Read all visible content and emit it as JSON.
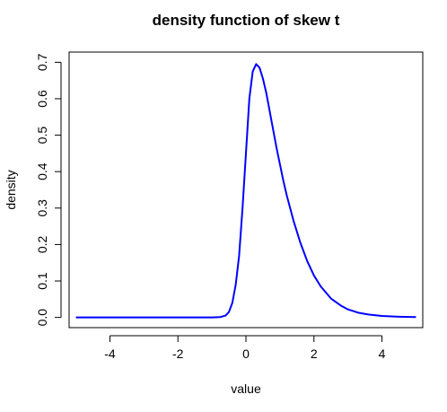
{
  "chart_data": {
    "type": "line",
    "title": "density function of skew t",
    "xlabel": "value",
    "ylabel": "density",
    "xlim": [
      -5.2,
      5.2
    ],
    "ylim": [
      -0.028,
      0.728
    ],
    "xticks": [
      -4,
      -2,
      0,
      2,
      4
    ],
    "xtick_labels": [
      "-4",
      "-2",
      "0",
      "2",
      "4"
    ],
    "yticks": [
      0.0,
      0.1,
      0.2,
      0.3,
      0.4,
      0.5,
      0.6,
      0.7
    ],
    "ytick_labels": [
      "0.0",
      "0.1",
      "0.2",
      "0.3",
      "0.4",
      "0.5",
      "0.6",
      "0.7"
    ],
    "grid": false,
    "series": [
      {
        "color": "#0000ff",
        "x": [
          -5.0,
          -4.0,
          -3.0,
          -2.0,
          -1.0,
          -0.75,
          -0.6,
          -0.5,
          -0.4,
          -0.3,
          -0.2,
          -0.1,
          0.0,
          0.1,
          0.2,
          0.3,
          0.4,
          0.5,
          0.6,
          0.7,
          0.8,
          0.9,
          1.0,
          1.1,
          1.2,
          1.4,
          1.6,
          1.8,
          2.0,
          2.2,
          2.5,
          2.8,
          3.0,
          3.3,
          3.6,
          4.0,
          4.5,
          5.0
        ],
        "y": [
          0.0,
          0.0,
          0.0,
          0.0,
          0.0,
          0.001,
          0.005,
          0.015,
          0.04,
          0.09,
          0.17,
          0.3,
          0.45,
          0.6,
          0.675,
          0.695,
          0.685,
          0.655,
          0.615,
          0.565,
          0.515,
          0.465,
          0.42,
          0.375,
          0.335,
          0.265,
          0.205,
          0.155,
          0.115,
          0.085,
          0.052,
          0.032,
          0.022,
          0.013,
          0.008,
          0.004,
          0.002,
          0.001
        ]
      }
    ]
  }
}
